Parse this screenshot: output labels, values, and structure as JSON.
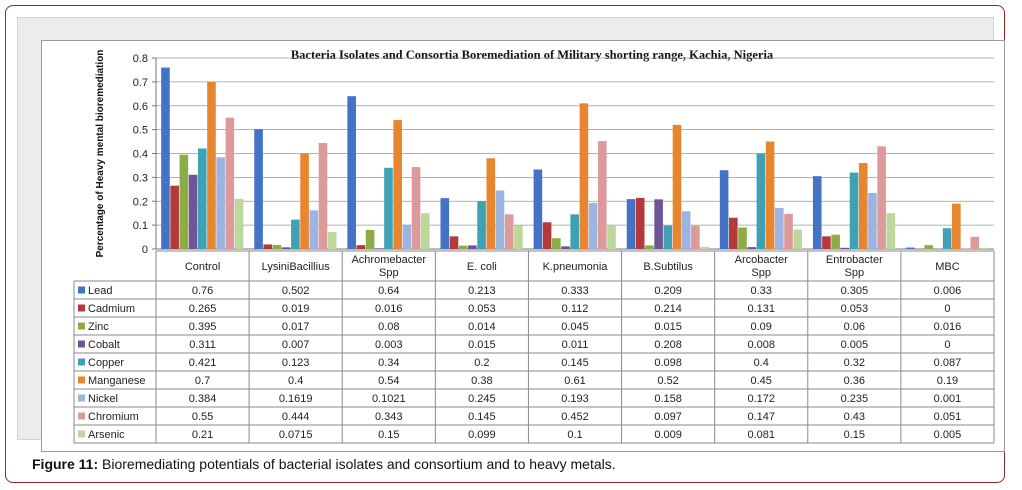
{
  "caption": {
    "label": "Figure 11:",
    "text": " Bioremediating potentials of bacterial isolates and consortium and to heavy metals."
  },
  "chart_data": {
    "type": "bar",
    "title": "Bacteria Isolates and Consortia Boremediation of Military shorting range, Kachia, Nigeria",
    "ylabel": "Percentage of Heavy mental bioremediation",
    "xlabel": "",
    "ylim": [
      0,
      0.8
    ],
    "yticks": [
      "0",
      "0.1",
      "0.2",
      "0.3",
      "0.4",
      "0.5",
      "0.6",
      "0.7",
      "0.8"
    ],
    "grid": true,
    "categories": [
      "Control",
      "LysiniBacillius",
      "Achromebacter Spp",
      "E. coli",
      "K.pneumonia",
      "B.Subtilus",
      "Arcobacter Spp",
      "Entrobacter Spp",
      "MBC"
    ],
    "series": [
      {
        "name": "Lead",
        "color": "#4472c4",
        "values": [
          0.76,
          0.502,
          0.64,
          0.213,
          0.333,
          0.209,
          0.33,
          0.305,
          0.006
        ],
        "labels": [
          "0.76",
          "0.502",
          "0.64",
          "0.213",
          "0.333",
          "0.209",
          "0.33",
          "0.305",
          "0.006"
        ]
      },
      {
        "name": "Cadmium",
        "color": "#b23a3a",
        "values": [
          0.265,
          0.019,
          0.016,
          0.053,
          0.112,
          0.214,
          0.131,
          0.053,
          0
        ],
        "labels": [
          "0.265",
          "0.019",
          "0.016",
          "0.053",
          "0.112",
          "0.214",
          "0.131",
          "0.053",
          "0"
        ]
      },
      {
        "name": "Zinc",
        "color": "#8cad45",
        "values": [
          0.395,
          0.017,
          0.08,
          0.014,
          0.045,
          0.015,
          0.09,
          0.06,
          0.016
        ],
        "labels": [
          "0.395",
          "0.017",
          "0.08",
          "0.014",
          "0.045",
          "0.015",
          "0.09",
          "0.06",
          "0.016"
        ]
      },
      {
        "name": "Cobalt",
        "color": "#6f5597",
        "values": [
          0.311,
          0.007,
          0.003,
          0.015,
          0.011,
          0.208,
          0.008,
          0.005,
          0
        ],
        "labels": [
          "0.311",
          "0.007",
          "0.003",
          "0.015",
          "0.011",
          "0.208",
          "0.008",
          "0.005",
          "0"
        ]
      },
      {
        "name": "Copper",
        "color": "#3ea1b4",
        "values": [
          0.421,
          0.123,
          0.34,
          0.2,
          0.145,
          0.098,
          0.4,
          0.32,
          0.087
        ],
        "labels": [
          "0.421",
          "0.123",
          "0.34",
          "0.2",
          "0.145",
          "0.098",
          "0.4",
          "0.32",
          "0.087"
        ]
      },
      {
        "name": "Manganese",
        "color": "#e8862f",
        "values": [
          0.7,
          0.4,
          0.54,
          0.38,
          0.61,
          0.52,
          0.45,
          0.36,
          0.19
        ],
        "labels": [
          "0.7",
          "0.4",
          "0.54",
          "0.38",
          "0.61",
          "0.52",
          "0.45",
          "0.36",
          "0.19"
        ]
      },
      {
        "name": "Nickel",
        "color": "#9db3e0",
        "values": [
          0.384,
          0.1619,
          0.1021,
          0.245,
          0.193,
          0.158,
          0.172,
          0.235,
          0.001
        ],
        "labels": [
          "0.384",
          "0.1619",
          "0.1021",
          "0.245",
          "0.193",
          "0.158",
          "0.172",
          "0.235",
          "0.001"
        ]
      },
      {
        "name": "Chromium",
        "color": "#dc9a9a",
        "values": [
          0.55,
          0.444,
          0.343,
          0.145,
          0.452,
          0.097,
          0.147,
          0.43,
          0.051
        ],
        "labels": [
          "0.55",
          "0.444",
          "0.343",
          "0.145",
          "0.452",
          "0.097",
          "0.147",
          "0.43",
          "0.051"
        ]
      },
      {
        "name": "Arsenic",
        "color": "#bcd89a",
        "values": [
          0.21,
          0.0715,
          0.15,
          0.099,
          0.1,
          0.009,
          0.081,
          0.15,
          0.005
        ],
        "labels": [
          "0.21",
          "0.0715",
          "0.15",
          "0.099",
          "0.1",
          "0.009",
          "0.081",
          "0.15",
          "0.005"
        ]
      }
    ]
  }
}
